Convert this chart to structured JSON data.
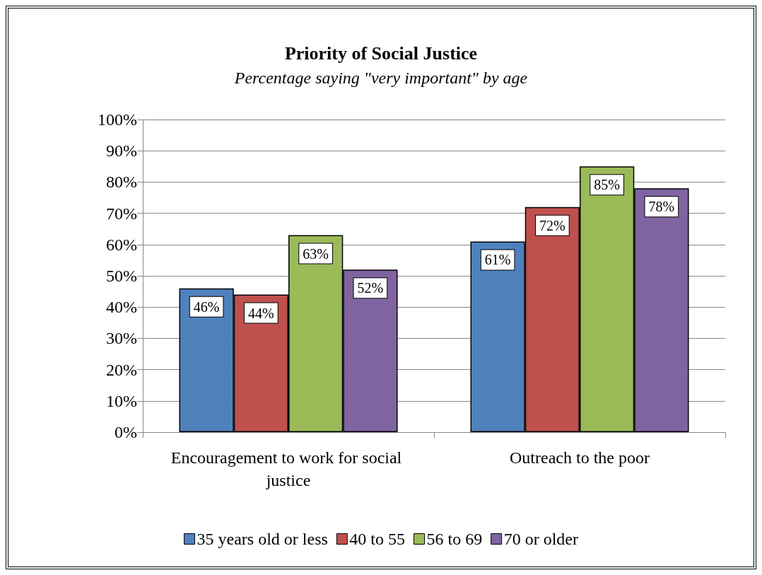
{
  "chart_data": {
    "type": "bar",
    "title": "Priority of Social Justice",
    "subtitle": "Percentage saying \"very important\" by age",
    "categories": [
      "Encouragement to work for social justice",
      "Outreach to the poor"
    ],
    "series": [
      {
        "name": "35 years old or less",
        "color": "#4f81bd",
        "values": [
          46,
          61
        ],
        "value_labels": [
          "46%",
          "61%"
        ]
      },
      {
        "name": "40 to 55",
        "color": "#c0504d",
        "values": [
          44,
          72
        ],
        "value_labels": [
          "44%",
          "72%"
        ]
      },
      {
        "name": "56 to 69",
        "color": "#9bbb59",
        "values": [
          63,
          85
        ],
        "value_labels": [
          "63%",
          "85%"
        ]
      },
      {
        "name": "70 or older",
        "color": "#8064a2",
        "values": [
          52,
          78
        ],
        "value_labels": [
          "52%",
          "78%"
        ]
      }
    ],
    "ylim": [
      0,
      100
    ],
    "yticks": [
      {
        "value": 0,
        "label": "0%"
      },
      {
        "value": 10,
        "label": "10%"
      },
      {
        "value": 20,
        "label": "20%"
      },
      {
        "value": 30,
        "label": "30%"
      },
      {
        "value": 40,
        "label": "40%"
      },
      {
        "value": 50,
        "label": "50%"
      },
      {
        "value": 60,
        "label": "60%"
      },
      {
        "value": 70,
        "label": "70%"
      },
      {
        "value": 80,
        "label": "80%"
      },
      {
        "value": 90,
        "label": "90%"
      },
      {
        "value": 100,
        "label": "100%"
      }
    ],
    "grid": "y",
    "legend": "bottom"
  }
}
